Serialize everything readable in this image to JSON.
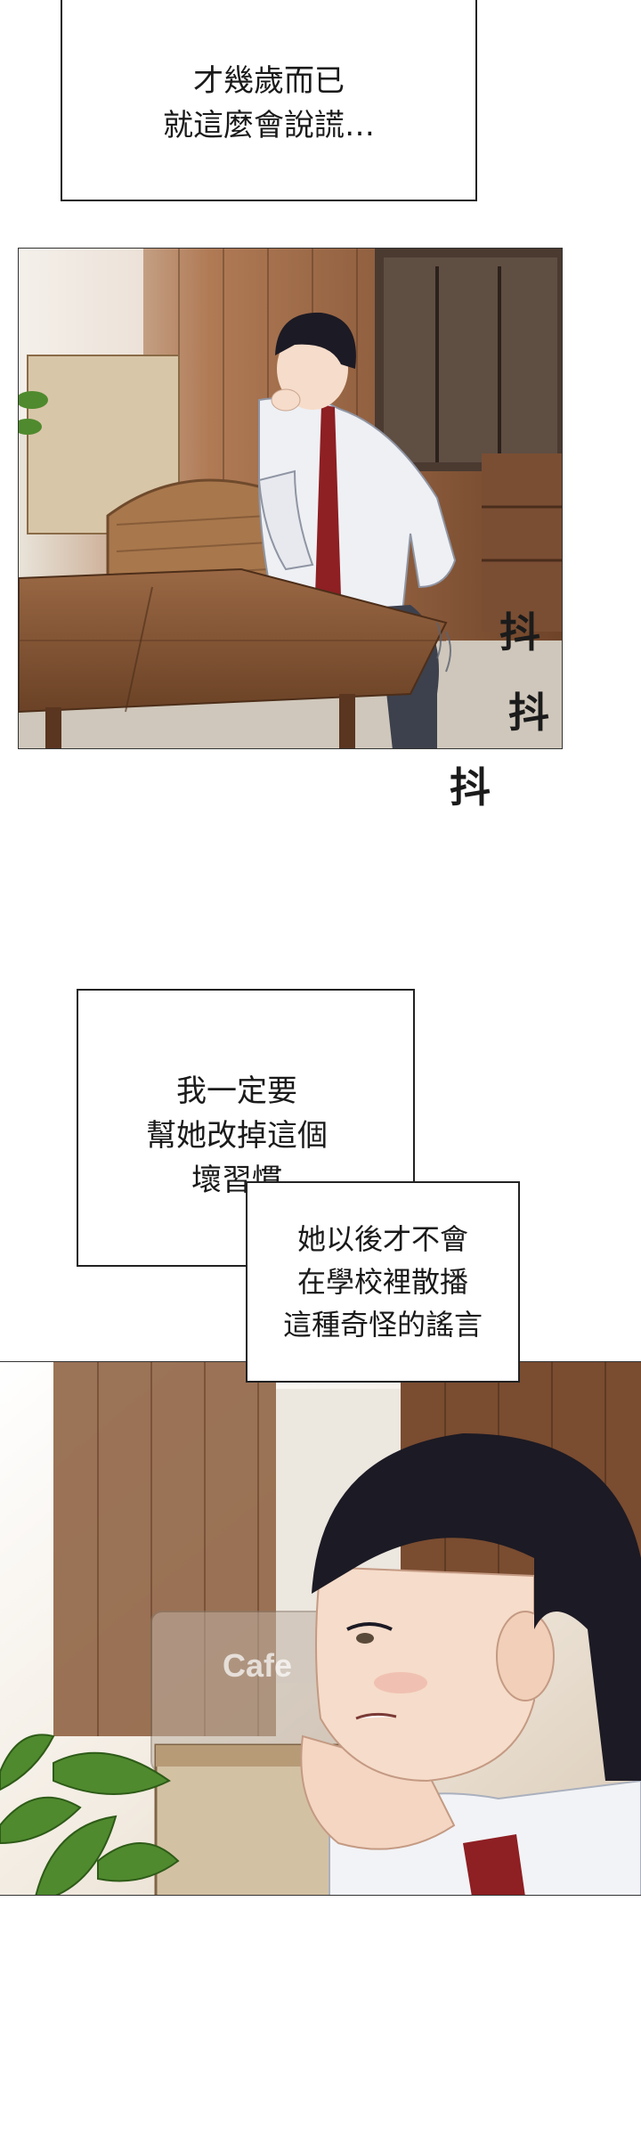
{
  "caption_top": {
    "lines": [
      "才幾歲而已",
      "就這麼會說謊…"
    ]
  },
  "panel_cafe": {
    "sfx": [
      "抖",
      "抖",
      "抖"
    ]
  },
  "caption_middle": {
    "lines": [
      "我一定要",
      "幫她改掉這個",
      "壞習慣"
    ]
  },
  "caption_overlap": {
    "lines": [
      "她以後才不會",
      "在學校裡散播",
      "這種奇怪的謠言"
    ]
  },
  "panel_closeup": {
    "sign_text": "Cafe"
  },
  "colors": {
    "wood": "#8a5a3a",
    "hair": "#1c1a24",
    "shirt": "#f2f3f6",
    "tie": "#8e1f23",
    "plant": "#4f8a2e"
  }
}
